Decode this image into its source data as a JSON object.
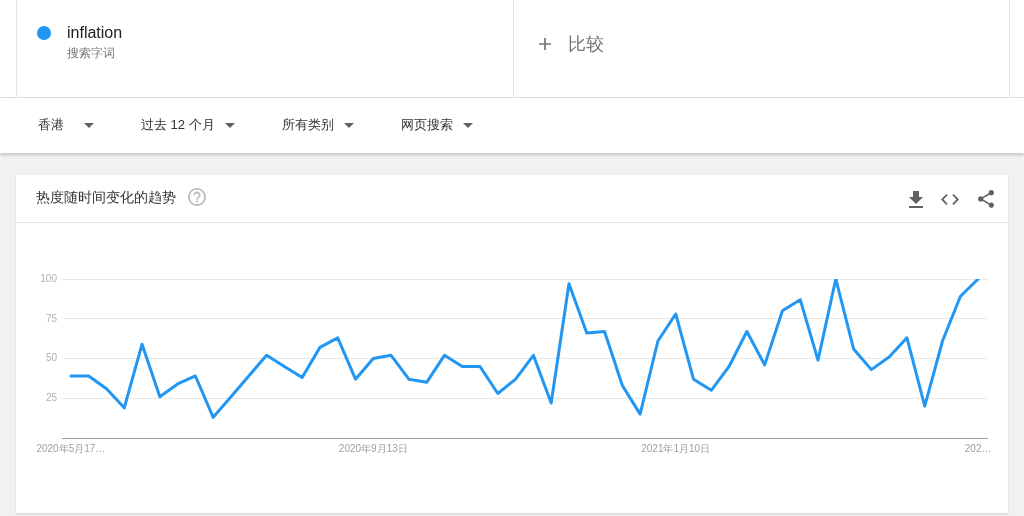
{
  "chart_data": {
    "type": "line",
    "title": "热度随时间变化的趋势",
    "categories": [
      "2020年5月17…",
      null,
      null,
      null,
      null,
      null,
      null,
      null,
      null,
      null,
      null,
      null,
      null,
      null,
      null,
      null,
      null,
      "2020年9月13日",
      null,
      null,
      null,
      null,
      null,
      null,
      null,
      null,
      null,
      null,
      null,
      null,
      null,
      null,
      null,
      null,
      "2021年1月10日",
      null,
      null,
      null,
      null,
      null,
      null,
      null,
      null,
      null,
      null,
      null,
      null,
      null,
      null,
      null,
      null,
      "202…"
    ],
    "series": [
      {
        "name": "inflation",
        "color": "#2196f3",
        "values": [
          39,
          39,
          31,
          19,
          59,
          26,
          34,
          39,
          13,
          26,
          39,
          52,
          45,
          38,
          57,
          63,
          37,
          50,
          52,
          37,
          35,
          52,
          45,
          45,
          28,
          37,
          52,
          22,
          97,
          66,
          67,
          33,
          15,
          61,
          78,
          37,
          30,
          45,
          67,
          46,
          80,
          87,
          49,
          100,
          56,
          43,
          51,
          63,
          20,
          61,
          89,
          100
        ]
      }
    ],
    "ylim": [
      0,
      100
    ],
    "yticks": [
      25,
      50,
      75,
      100
    ],
    "grid": "y",
    "legend": "top left",
    "marker": "none",
    "line_style": "solid",
    "annotations": [
      "搜索字词",
      "比较",
      "香港",
      "过去 12 个月",
      "所有类别",
      "网页搜索"
    ]
  }
}
